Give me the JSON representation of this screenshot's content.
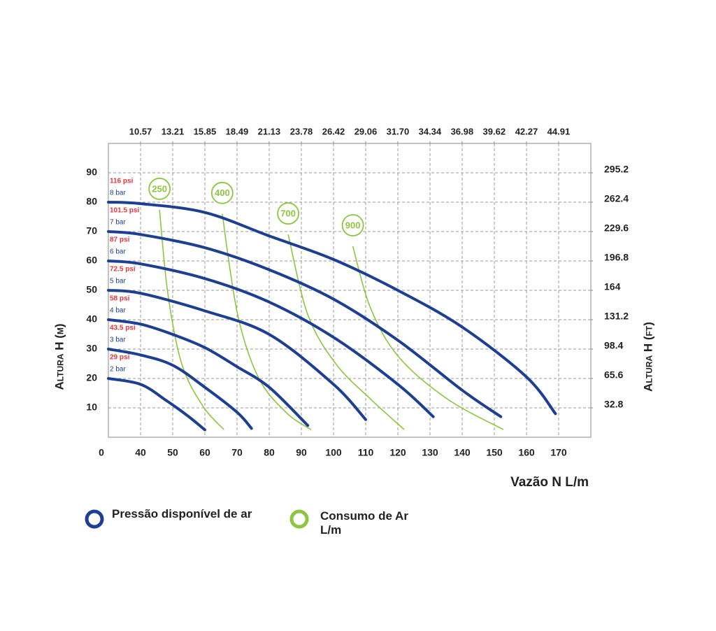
{
  "chart_data": {
    "type": "line",
    "xlabel": "Vazão N L/m",
    "ylabel": "Altura H (m)",
    "y2label": "Altura H (ft)",
    "origin_label": "0",
    "xlim": [
      30,
      180
    ],
    "xticks": [
      40,
      50,
      60,
      70,
      80,
      90,
      100,
      110,
      120,
      130,
      140,
      150,
      160,
      170
    ],
    "x2lim": [
      7.926,
      47.556
    ],
    "x2ticks": [
      10.57,
      13.21,
      15.85,
      18.49,
      21.13,
      23.78,
      26.42,
      29.06,
      {
        "value": 31.7,
        "label": "31.70"
      },
      34.34,
      36.98,
      39.62,
      42.27,
      44.91
    ],
    "ylim": [
      0,
      100
    ],
    "yticks": [
      10,
      20,
      30,
      40,
      50,
      60,
      70,
      80,
      90
    ],
    "y2lim": [
      0,
      328
    ],
    "y2ticks": [
      32.8,
      65.6,
      98.4,
      131.2,
      164,
      196.8,
      229.6,
      262.4,
      295.2
    ],
    "grid": true,
    "legend": {
      "pressure": "Pressão disponível de ar",
      "consumption": "Consumo de Ar L/m"
    },
    "pressure_color": "#1d3f93",
    "psi_color": "#e8343a",
    "consumption_color": "#8cc63f",
    "pressure_curves": [
      {
        "name": "2 bar",
        "psi": "29 psi",
        "x": [
          30,
          40,
          48,
          55,
          60
        ],
        "y": [
          20,
          18,
          12.5,
          7,
          2.5
        ]
      },
      {
        "name": "3 bar",
        "psi": "43.5 psi",
        "x": [
          30,
          40,
          50,
          60,
          70,
          74.5
        ],
        "y": [
          30,
          28,
          24.5,
          17,
          8.5,
          3
        ]
      },
      {
        "name": "4 bar",
        "psi": "58 psi",
        "x": [
          30,
          40,
          50,
          60,
          70,
          80,
          92
        ],
        "y": [
          40,
          38.5,
          35,
          30.5,
          24,
          17,
          4
        ]
      },
      {
        "name": "5 bar",
        "psi": "72.5 psi",
        "x": [
          30,
          40,
          60,
          80,
          100,
          110
        ],
        "y": [
          50,
          49,
          43,
          35,
          18,
          6
        ]
      },
      {
        "name": "6 bar",
        "psi": "87 psi",
        "x": [
          30,
          40,
          60,
          80,
          100,
          120,
          131
        ],
        "y": [
          60,
          59,
          54,
          46,
          34,
          18,
          7
        ]
      },
      {
        "name": "7 bar",
        "psi": "101.5 psi",
        "x": [
          30,
          40,
          60,
          80,
          100,
          120,
          140,
          152
        ],
        "y": [
          70,
          69,
          64.5,
          57,
          47,
          33,
          16,
          7
        ]
      },
      {
        "name": "8 bar",
        "psi": "116 psi",
        "x": [
          30,
          40,
          60,
          80,
          100,
          120,
          140,
          160,
          169
        ],
        "y": [
          80,
          79.5,
          76.5,
          68.5,
          60.5,
          50,
          37.5,
          20.5,
          8
        ]
      }
    ],
    "consumption_curves": [
      {
        "name": "250",
        "x": [
          45.9,
          48.5,
          52.8,
          59.3,
          65.9
        ],
        "y": [
          77.4,
          48.8,
          25,
          10.7,
          2.6
        ]
      },
      {
        "name": "400",
        "x": [
          65.4,
          70.2,
          76.7,
          85.4,
          93
        ],
        "y": [
          76,
          41.7,
          20.2,
          8.3,
          2.6
        ]
      },
      {
        "name": "700",
        "x": [
          85.9,
          92,
          100.7,
          111.5,
          122
        ],
        "y": [
          69,
          41.7,
          25,
          13,
          2.6
        ]
      },
      {
        "name": "900",
        "x": [
          106,
          111.5,
          120.2,
          135.4,
          152.8
        ],
        "y": [
          65,
          44,
          27.4,
          13,
          2.6
        ]
      }
    ]
  }
}
